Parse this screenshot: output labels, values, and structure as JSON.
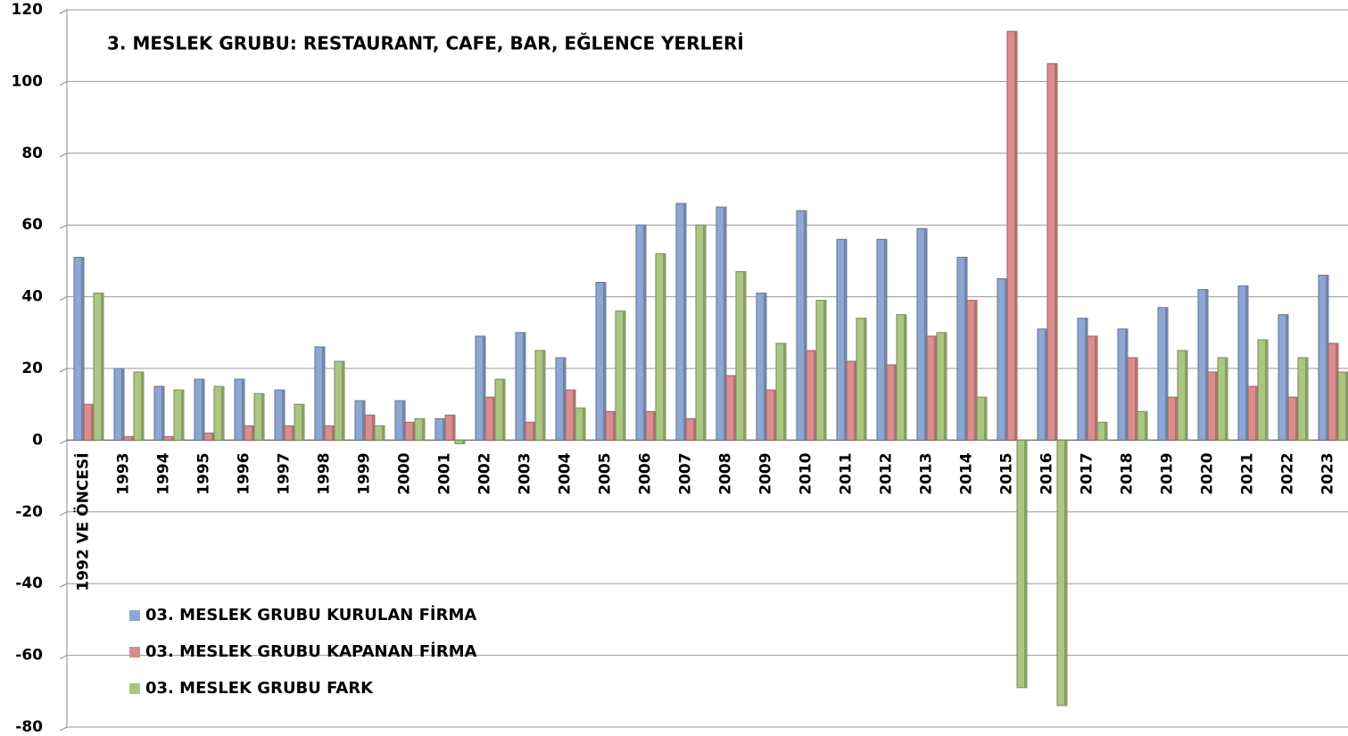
{
  "chart_data": {
    "type": "bar",
    "title": "3. MESLEK GRUBU: RESTAURANT, CAFE, BAR, EĞLENCE YERLERİ",
    "categories": [
      "1992 VE ÖNCESİ",
      "1993",
      "1994",
      "1995",
      "1996",
      "1997",
      "1998",
      "1999",
      "2000",
      "2001",
      "2002",
      "2003",
      "2004",
      "2005",
      "2006",
      "2007",
      "2008",
      "2009",
      "2010",
      "2011",
      "2012",
      "2013",
      "2014",
      "2015",
      "2016",
      "2017",
      "2018",
      "2019",
      "2020",
      "2021",
      "2022",
      "2023"
    ],
    "series": [
      {
        "name": "03. MESLEK GRUBU KURULAN FİRMA",
        "color": "#8ea6d2",
        "values": [
          51,
          20,
          15,
          17,
          17,
          14,
          26,
          11,
          11,
          6,
          29,
          30,
          23,
          44,
          60,
          66,
          65,
          41,
          64,
          56,
          56,
          59,
          51,
          45,
          31,
          34,
          31,
          37,
          42,
          43,
          35,
          46
        ]
      },
      {
        "name": "03. MESLEK GRUBU KAPANAN FİRMA",
        "color": "#d98e8d",
        "values": [
          10,
          1,
          1,
          2,
          4,
          4,
          4,
          7,
          5,
          7,
          12,
          5,
          14,
          8,
          8,
          6,
          18,
          14,
          25,
          22,
          21,
          29,
          39,
          114,
          105,
          29,
          23,
          12,
          19,
          15,
          12,
          27
        ]
      },
      {
        "name": "03. MESLEK GRUBU FARK",
        "color": "#aac680",
        "values": [
          41,
          19,
          14,
          15,
          13,
          10,
          22,
          4,
          6,
          -1,
          17,
          25,
          9,
          36,
          52,
          60,
          47,
          27,
          39,
          34,
          35,
          30,
          12,
          -69,
          -74,
          5,
          8,
          25,
          23,
          28,
          23,
          19
        ]
      }
    ],
    "ylim": [
      -80,
      120
    ],
    "yticks": [
      -80,
      -60,
      -40,
      -20,
      0,
      20,
      40,
      60,
      80,
      100,
      120
    ],
    "grid": true,
    "legend": "lower left"
  }
}
